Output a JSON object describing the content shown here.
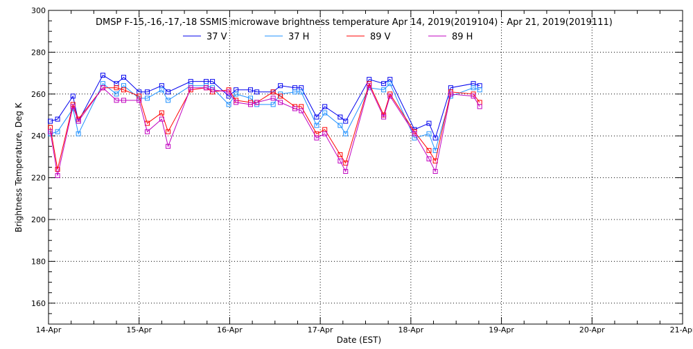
{
  "chart_data": {
    "type": "line",
    "title": "DMSP F-15,-16,-17,-18 SSMIS microwave brightness temperature Apr 14, 2019(2019104) - Apr 21, 2019(2019111)",
    "xlabel": "Date (EST)",
    "ylabel": "Brightness Temperature, Deg K",
    "xlim": [
      0,
      7
    ],
    "ylim": [
      150,
      300
    ],
    "x_unit": "days since 14-Apr 00:00",
    "xticks": [
      0,
      1,
      2,
      3,
      4,
      5,
      6,
      7
    ],
    "xtick_labels": [
      "14-Apr",
      "15-Apr",
      "16-Apr",
      "17-Apr",
      "18-Apr",
      "19-Apr",
      "20-Apr",
      "21-Apr"
    ],
    "yticks": [
      160,
      180,
      200,
      220,
      240,
      260,
      280,
      300
    ],
    "ytick_labels": [
      "160",
      "180",
      "200",
      "220",
      "240",
      "260",
      "280",
      "300"
    ],
    "grid": true,
    "legend_position": "top-center",
    "x": [
      0.02,
      0.1,
      0.27,
      0.33,
      0.6,
      0.75,
      0.83,
      1.0,
      1.09,
      1.25,
      1.32,
      1.57,
      1.74,
      1.81,
      1.99,
      2.07,
      2.23,
      2.3,
      2.48,
      2.56,
      2.72,
      2.79,
      2.96,
      3.05,
      3.22,
      3.28,
      3.54,
      3.7,
      3.77,
      4.04,
      4.2,
      4.27,
      4.44,
      4.69,
      4.76
    ],
    "series": [
      {
        "name": "37 V",
        "color": "#0000ee",
        "values": [
          247,
          248,
          259,
          247,
          269,
          265,
          268,
          261,
          261,
          264,
          261,
          266,
          266,
          266,
          259,
          262,
          262,
          261,
          261,
          264,
          263,
          263,
          249,
          254,
          249,
          247,
          267,
          265,
          267,
          243,
          246,
          239,
          263,
          265,
          264
        ]
      },
      {
        "name": "37 H",
        "color": "#1e90ff",
        "values": [
          241,
          242,
          253,
          241,
          265,
          260,
          264,
          258,
          258,
          262,
          257,
          264,
          264,
          263,
          255,
          260,
          258,
          255,
          255,
          260,
          261,
          261,
          245,
          251,
          245,
          241,
          263,
          262,
          265,
          239,
          241,
          233,
          259,
          263,
          262
        ]
      },
      {
        "name": "89 V",
        "color": "#ff0000",
        "values": [
          244,
          224,
          255,
          248,
          263,
          263,
          262,
          259,
          246,
          251,
          242,
          262,
          263,
          261,
          262,
          257,
          256,
          256,
          261,
          259,
          254,
          254,
          241,
          243,
          231,
          227,
          265,
          250,
          260,
          242,
          233,
          228,
          261,
          260,
          256
        ]
      },
      {
        "name": "89 H",
        "color": "#c000c0",
        "values": [
          242,
          221,
          254,
          247,
          263,
          257,
          257,
          257,
          242,
          248,
          235,
          263,
          263,
          262,
          261,
          256,
          255,
          256,
          258,
          256,
          253,
          252,
          239,
          241,
          228,
          223,
          264,
          249,
          259,
          241,
          229,
          223,
          260,
          259,
          254
        ]
      }
    ]
  }
}
